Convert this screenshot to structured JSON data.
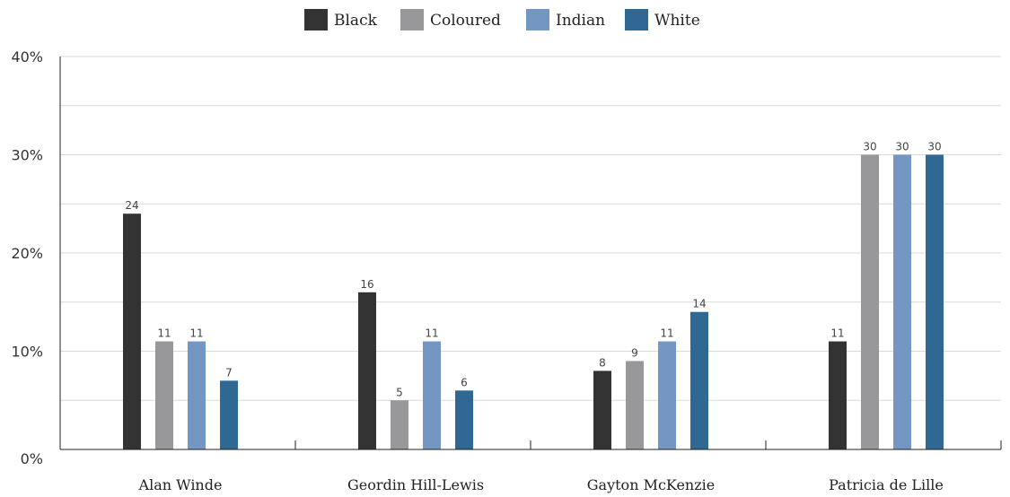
{
  "chart_data": {
    "type": "bar",
    "categories": [
      "Alan Winde",
      "Geordin Hill-Lewis",
      "Gayton McKenzie",
      "Patricia de Lille"
    ],
    "series": [
      {
        "name": "Black",
        "color": "#333333",
        "values": [
          24,
          16,
          8,
          11
        ]
      },
      {
        "name": "Coloured",
        "color": "#98979a",
        "values": [
          11,
          5,
          9,
          30
        ]
      },
      {
        "name": "Indian",
        "color": "#7397c2",
        "values": [
          11,
          11,
          11,
          30
        ]
      },
      {
        "name": "White",
        "color": "#2f6893",
        "values": [
          7,
          6,
          14,
          30
        ]
      }
    ],
    "y_tick_labels": [
      "0%",
      "10%",
      "20%",
      "30%",
      "40%"
    ],
    "ylim": [
      0,
      40
    ],
    "y_ticks": [
      0,
      10,
      20,
      30,
      40
    ],
    "grid": true,
    "legend_position": "top-center",
    "data_labels": true
  }
}
